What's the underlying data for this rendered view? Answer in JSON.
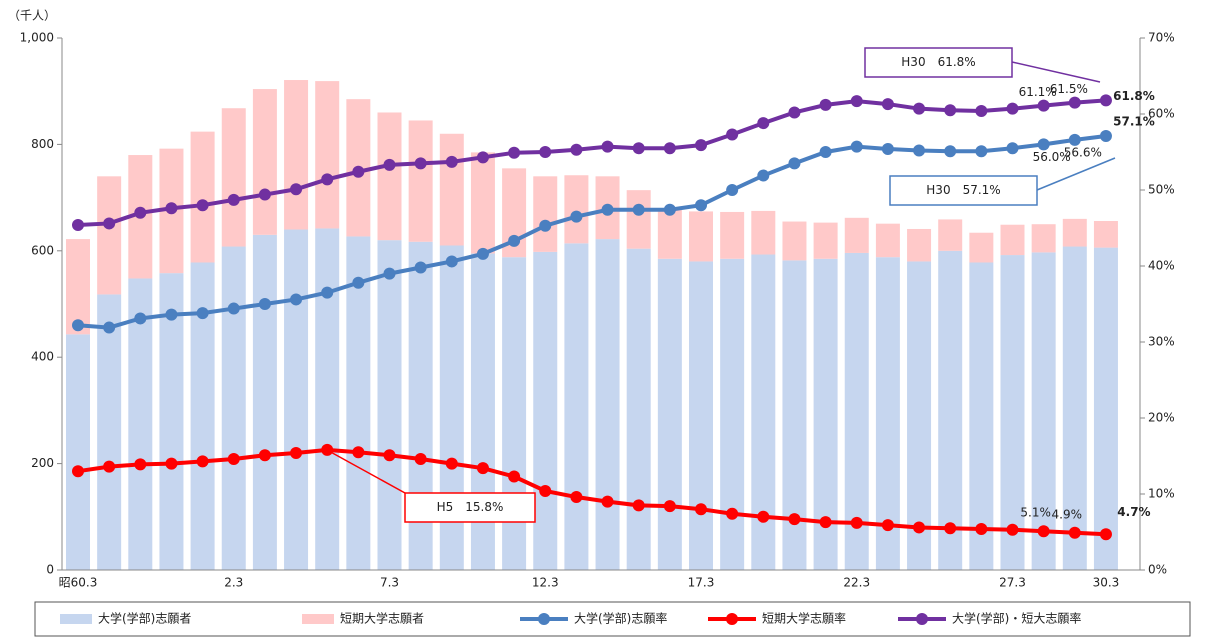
{
  "chart_data": {
    "type": "bar",
    "stacked": true,
    "y_label": "（千人）",
    "categories": [
      "昭60.3",
      null,
      null,
      null,
      null,
      "2.3",
      null,
      null,
      null,
      null,
      "7.3",
      null,
      null,
      null,
      null,
      "12.3",
      null,
      null,
      null,
      null,
      "17.3",
      null,
      null,
      null,
      null,
      "22.3",
      null,
      null,
      null,
      null,
      "27.3",
      null,
      null,
      "30.3"
    ],
    "ylim": [
      0,
      1000
    ],
    "yticks": [
      0,
      200,
      400,
      600,
      800,
      {
        "value": 1000,
        "label": "1,000"
      }
    ],
    "y2lim": [
      0,
      70
    ],
    "y2ticks": [
      {
        "value": 0,
        "label": "0%"
      },
      {
        "value": 10,
        "label": "10%"
      },
      {
        "value": 20,
        "label": "20%"
      },
      {
        "value": 30,
        "label": "30%"
      },
      {
        "value": 40,
        "label": "40%"
      },
      {
        "value": 50,
        "label": "50%"
      },
      {
        "value": 60,
        "label": "60%"
      },
      {
        "value": 70,
        "label": "70%"
      }
    ],
    "series": [
      {
        "name": "大学(学部)志願者",
        "type": "bar",
        "color": "#c6d6ef",
        "values": [
          443,
          518,
          548,
          558,
          578,
          608,
          630,
          640,
          642,
          627,
          620,
          617,
          610,
          595,
          588,
          598,
          614,
          622,
          604,
          585,
          580,
          585,
          593,
          582,
          585,
          596,
          588,
          580,
          600,
          578,
          592,
          597,
          608,
          606
        ]
      },
      {
        "name": "短期大学志願者",
        "type": "bar",
        "color": "#ffc9c9",
        "values": [
          179,
          222,
          232,
          234,
          246,
          260,
          274,
          281,
          277,
          258,
          240,
          228,
          210,
          190,
          167,
          142,
          128,
          118,
          110,
          95,
          94,
          88,
          82,
          73,
          68,
          66,
          63,
          61,
          59,
          56,
          57,
          53,
          52,
          50
        ]
      },
      {
        "name": "大学(学部)志願率",
        "type": "line",
        "axis": "y2",
        "color": "#4a7fc0",
        "values": [
          32.2,
          31.9,
          33.1,
          33.6,
          33.8,
          34.4,
          35.0,
          35.6,
          36.5,
          37.8,
          39.0,
          39.8,
          40.6,
          41.6,
          43.3,
          45.3,
          46.5,
          47.4,
          47.4,
          47.4,
          48.0,
          50.0,
          51.9,
          53.5,
          55.0,
          55.7,
          55.4,
          55.2,
          55.1,
          55.1,
          55.5,
          56.0,
          56.6,
          57.1
        ],
        "value_labels": [
          null,
          null,
          null,
          null,
          null,
          null,
          null,
          null,
          null,
          null,
          null,
          null,
          null,
          null,
          null,
          null,
          null,
          null,
          null,
          null,
          null,
          null,
          null,
          null,
          null,
          null,
          null,
          null,
          null,
          null,
          null,
          "56.0%",
          "56.6%",
          "57.1%"
        ]
      },
      {
        "name": "短期大学志願率",
        "type": "line",
        "axis": "y2",
        "color": "#ff0000",
        "values": [
          13.0,
          13.6,
          13.9,
          14.0,
          14.3,
          14.6,
          15.1,
          15.4,
          15.8,
          15.5,
          15.1,
          14.6,
          14.0,
          13.4,
          12.3,
          10.4,
          9.6,
          9.0,
          8.5,
          8.4,
          8.0,
          7.4,
          7.0,
          6.7,
          6.3,
          6.2,
          5.9,
          5.6,
          5.5,
          5.4,
          5.3,
          5.1,
          4.9,
          4.7
        ],
        "value_labels": [
          null,
          null,
          null,
          null,
          null,
          null,
          null,
          null,
          null,
          null,
          null,
          null,
          null,
          null,
          null,
          null,
          null,
          null,
          null,
          null,
          null,
          null,
          null,
          null,
          null,
          null,
          null,
          null,
          null,
          null,
          null,
          "5.1%",
          "4.9%",
          "4.7%"
        ]
      },
      {
        "name": "大学(学部)・短大志願率",
        "type": "line",
        "axis": "y2",
        "color": "#7030a0",
        "values": [
          45.4,
          45.6,
          47.0,
          47.6,
          48.0,
          48.7,
          49.4,
          50.1,
          51.4,
          52.4,
          53.3,
          53.5,
          53.7,
          54.3,
          54.9,
          55.0,
          55.3,
          55.7,
          55.5,
          55.5,
          55.9,
          57.3,
          58.8,
          60.2,
          61.2,
          61.7,
          61.3,
          60.7,
          60.5,
          60.4,
          60.7,
          61.1,
          61.5,
          61.8
        ],
        "value_labels": [
          null,
          null,
          null,
          null,
          null,
          null,
          null,
          null,
          null,
          null,
          null,
          null,
          null,
          null,
          null,
          null,
          null,
          null,
          null,
          null,
          null,
          null,
          null,
          null,
          null,
          null,
          null,
          null,
          null,
          null,
          null,
          "61.1%",
          "61.5%",
          "61.8%"
        ]
      }
    ],
    "annotations": [
      "H30　61.8%",
      "H30　57.1%",
      "H5　15.8%"
    ]
  }
}
